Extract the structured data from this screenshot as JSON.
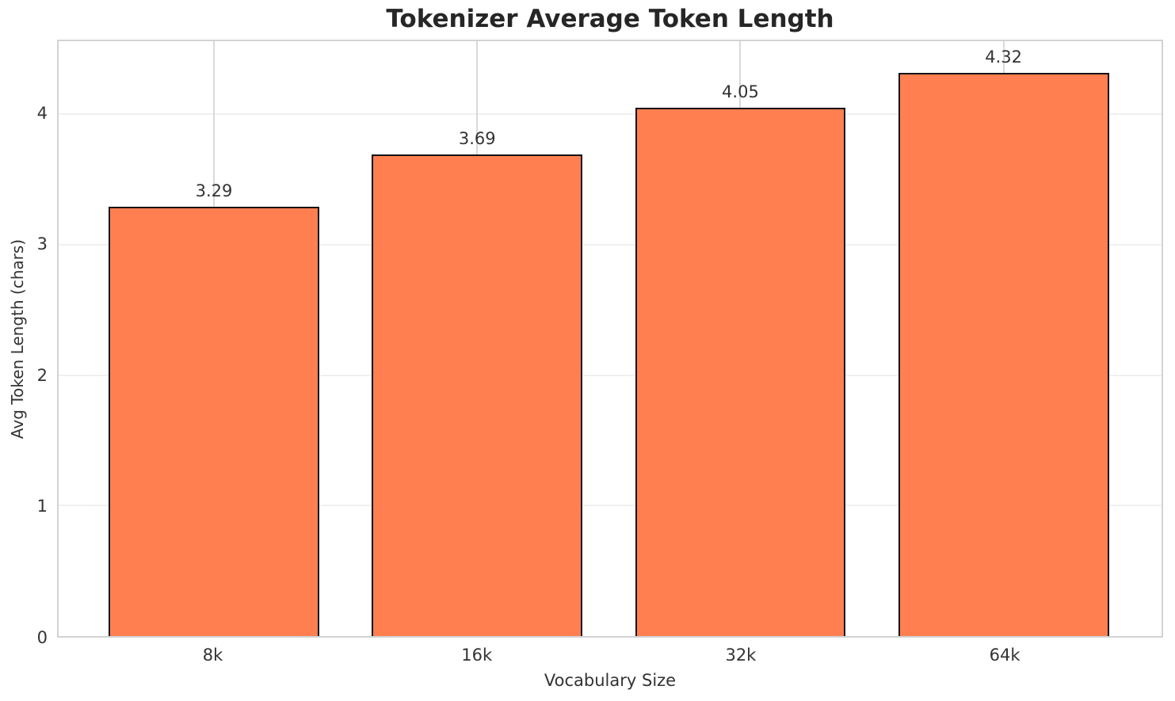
{
  "chart_data": {
    "type": "bar",
    "title": "Tokenizer Average Token Length",
    "xlabel": "Vocabulary Size",
    "ylabel": "Avg Token Length (chars)",
    "categories": [
      "8k",
      "16k",
      "32k",
      "64k"
    ],
    "values": [
      3.29,
      3.69,
      4.05,
      4.32
    ],
    "value_labels": [
      "3.29",
      "3.69",
      "4.05",
      "4.32"
    ],
    "ytick_labels": [
      "0",
      "1",
      "2",
      "3",
      "4"
    ],
    "ytick_values": [
      0,
      1,
      2,
      3,
      4
    ],
    "ylim": [
      0,
      4.56
    ],
    "xlim": [
      -0.59,
      3.6
    ],
    "bar_width_data_units": 0.8,
    "grid": true,
    "legend": null,
    "colors": {
      "bar_fill": "#FF7F50",
      "bar_edge": "#141414",
      "grid_vertical": "#d9d9d9",
      "grid_horizontal": "#f0f0f0",
      "spine": "#d2d2d2",
      "title_text": "#262626",
      "tick_text": "#333333"
    }
  }
}
